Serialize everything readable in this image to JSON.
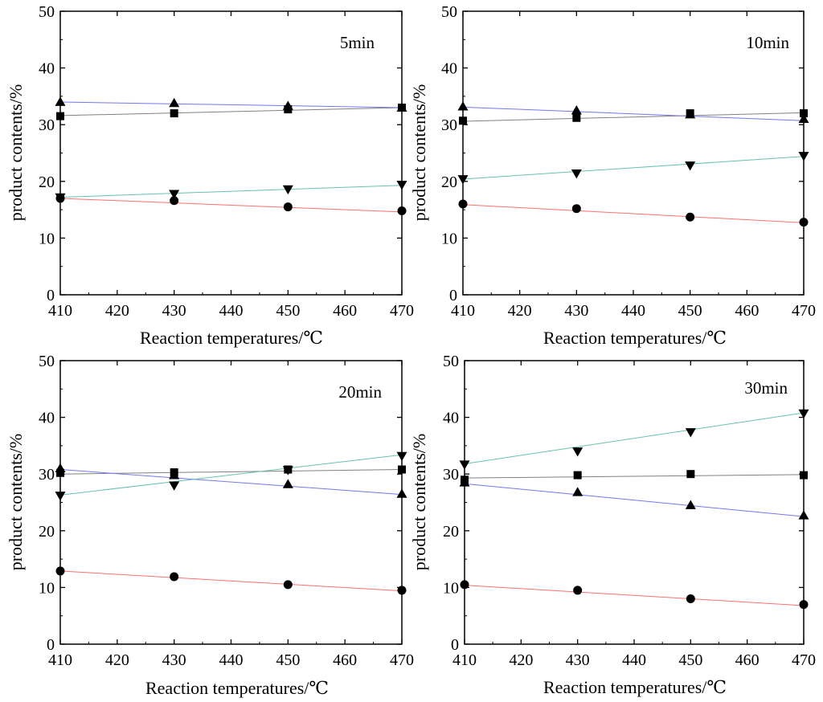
{
  "chart_data": [
    {
      "type": "line",
      "title": "5min",
      "xlabel": "Reaction temperatures/℃",
      "ylabel": "product contents/%",
      "xlim": [
        410,
        470
      ],
      "ylim": [
        0,
        50
      ],
      "x_ticks": [
        410,
        420,
        430,
        440,
        450,
        460,
        470
      ],
      "y_ticks": [
        0,
        10,
        20,
        30,
        40,
        50
      ],
      "x": [
        410,
        430,
        450,
        470
      ],
      "series": [
        {
          "name": "square",
          "marker": "square",
          "color": "#808080",
          "values": [
            31.5,
            32.0,
            32.7,
            33.0
          ],
          "fit": [
            31.6,
            33.0
          ]
        },
        {
          "name": "triangle-up",
          "marker": "triangle-up",
          "color": "#7777ee",
          "values": [
            34.0,
            33.8,
            33.3,
            33.0
          ],
          "fit": [
            34.0,
            33.0
          ]
        },
        {
          "name": "triangle-down",
          "marker": "triangle-down",
          "color": "#66c2b0",
          "values": [
            17.2,
            17.8,
            18.6,
            19.4
          ],
          "fit": [
            17.2,
            19.3
          ]
        },
        {
          "name": "circle",
          "marker": "circle",
          "color": "#ff7070",
          "values": [
            17.0,
            16.6,
            15.5,
            14.8
          ],
          "fit": [
            17.0,
            14.6
          ]
        }
      ]
    },
    {
      "type": "line",
      "title": "10min",
      "xlabel": "Reaction temperatures/℃",
      "ylabel": "product contents/%",
      "xlim": [
        410,
        470
      ],
      "ylim": [
        0,
        50
      ],
      "x_ticks": [
        410,
        420,
        430,
        440,
        450,
        460,
        470
      ],
      "y_ticks": [
        0,
        10,
        20,
        30,
        40,
        50
      ],
      "x": [
        410,
        430,
        450,
        470
      ],
      "series": [
        {
          "name": "square",
          "marker": "square",
          "color": "#808080",
          "values": [
            30.7,
            31.2,
            32.0,
            32.0
          ],
          "fit": [
            30.6,
            32.1
          ]
        },
        {
          "name": "triangle-up",
          "marker": "triangle-up",
          "color": "#7777ee",
          "values": [
            33.2,
            32.5,
            31.8,
            31.0
          ],
          "fit": [
            33.1,
            30.7
          ]
        },
        {
          "name": "triangle-down",
          "marker": "triangle-down",
          "color": "#66c2b0",
          "values": [
            20.4,
            21.4,
            22.8,
            24.5
          ],
          "fit": [
            20.4,
            24.4
          ]
        },
        {
          "name": "circle",
          "marker": "circle",
          "color": "#ff7070",
          "values": [
            16.0,
            15.2,
            13.7,
            12.8
          ],
          "fit": [
            15.9,
            12.7
          ]
        }
      ]
    },
    {
      "type": "line",
      "title": "20min",
      "xlabel": "Reaction temperatures/℃",
      "ylabel": "product contents/%",
      "xlim": [
        410,
        470
      ],
      "ylim": [
        0,
        50
      ],
      "x_ticks": [
        410,
        420,
        430,
        440,
        450,
        460,
        470
      ],
      "y_ticks": [
        0,
        10,
        20,
        30,
        40,
        50
      ],
      "x": [
        410,
        430,
        450,
        470
      ],
      "series": [
        {
          "name": "square",
          "marker": "square",
          "color": "#808080",
          "values": [
            30.2,
            30.3,
            30.8,
            30.8
          ],
          "fit": [
            30.0,
            30.8
          ]
        },
        {
          "name": "triangle-up",
          "marker": "triangle-up",
          "color": "#7777ee",
          "values": [
            31.0,
            29.8,
            28.2,
            26.5
          ],
          "fit": [
            30.8,
            26.4
          ]
        },
        {
          "name": "triangle-down",
          "marker": "triangle-down",
          "color": "#66c2b0",
          "values": [
            26.2,
            28.0,
            30.7,
            33.2
          ],
          "fit": [
            26.3,
            33.4
          ]
        },
        {
          "name": "circle",
          "marker": "circle",
          "color": "#ff7070",
          "values": [
            12.9,
            11.9,
            10.5,
            9.5
          ],
          "fit": [
            12.9,
            9.4
          ]
        }
      ]
    },
    {
      "type": "line",
      "title": "30min",
      "xlabel": "Reaction temperatures/℃",
      "ylabel": "product contents/%",
      "xlim": [
        410,
        470
      ],
      "ylim": [
        0,
        50
      ],
      "x_ticks": [
        410,
        420,
        430,
        440,
        450,
        460,
        470
      ],
      "y_ticks": [
        0,
        10,
        20,
        30,
        40,
        50
      ],
      "x": [
        410,
        430,
        450,
        470
      ],
      "series": [
        {
          "name": "square",
          "marker": "square",
          "color": "#808080",
          "values": [
            29.0,
            29.8,
            30.0,
            29.8
          ],
          "fit": [
            29.3,
            29.9
          ]
        },
        {
          "name": "triangle-up",
          "marker": "triangle-up",
          "color": "#7777ee",
          "values": [
            28.5,
            26.8,
            24.5,
            22.7
          ],
          "fit": [
            28.3,
            22.5
          ]
        },
        {
          "name": "triangle-down",
          "marker": "triangle-down",
          "color": "#66c2b0",
          "values": [
            31.7,
            34.0,
            37.4,
            40.7
          ],
          "fit": [
            31.8,
            40.8
          ]
        },
        {
          "name": "circle",
          "marker": "circle",
          "color": "#ff7070",
          "values": [
            10.5,
            9.5,
            8.0,
            7.0
          ],
          "fit": [
            10.4,
            6.8
          ]
        }
      ]
    }
  ]
}
